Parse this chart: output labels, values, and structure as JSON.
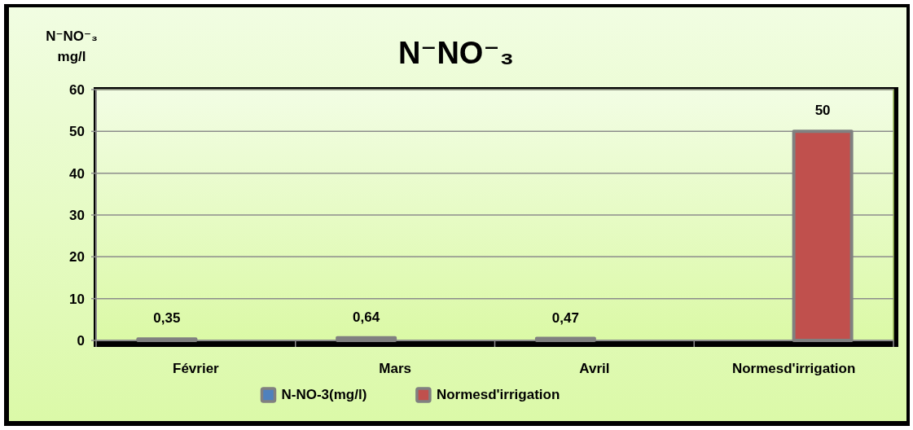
{
  "chart_data": {
    "type": "bar",
    "title": "N⁻NO⁻₃",
    "ylabel": "N⁻NO⁻₃\nmg/l",
    "categories": [
      "Février",
      "Mars",
      "Avril",
      "Normesd'irrigation"
    ],
    "series": [
      {
        "name": "N-NO-3(mg/l)",
        "color": "#4f81bd",
        "values": [
          0.35,
          0.64,
          0.47,
          null
        ],
        "value_labels": [
          "0,35",
          "0,64",
          "0,47",
          null
        ]
      },
      {
        "name": "Normesd'irrigation",
        "color": "#c0504d",
        "values": [
          null,
          null,
          null,
          50
        ],
        "value_labels": [
          null,
          null,
          null,
          "50"
        ]
      }
    ],
    "ylim": [
      0,
      60
    ],
    "yticks": [
      0,
      10,
      20,
      30,
      40,
      50,
      60
    ],
    "grid": "y",
    "legend": "bottom"
  }
}
